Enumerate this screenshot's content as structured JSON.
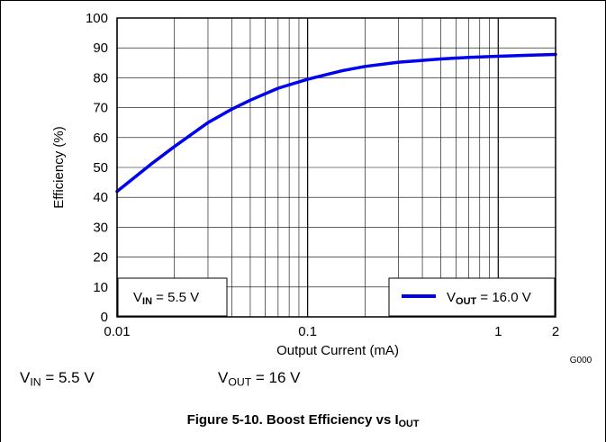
{
  "chart_data": {
    "type": "line",
    "xlabel": "Output Current (mA)",
    "ylabel": "Efficiency (%)",
    "xscale": "log",
    "xlim": [
      0.01,
      2
    ],
    "ylim": [
      0,
      100
    ],
    "x_tick_labels": [
      "0.01",
      "0.1",
      "1",
      "2"
    ],
    "x_tick_values": [
      0.01,
      0.1,
      1,
      2
    ],
    "y_tick_labels": [
      "0",
      "10",
      "20",
      "30",
      "40",
      "50",
      "60",
      "70",
      "80",
      "90",
      "100"
    ],
    "grid": true,
    "legend_position": "bottom-right",
    "series": [
      {
        "name_main": "V",
        "name_sub": "OUT",
        "name_rest": " = 16.0 V",
        "color": "#0000ee",
        "x": [
          0.01,
          0.015,
          0.02,
          0.03,
          0.04,
          0.05,
          0.07,
          0.1,
          0.15,
          0.2,
          0.3,
          0.5,
          0.7,
          1,
          1.5,
          2
        ],
        "y": [
          42,
          51,
          57,
          65,
          69.5,
          72.5,
          76.5,
          79.5,
          82.3,
          83.8,
          85.2,
          86.3,
          86.8,
          87.2,
          87.6,
          87.8
        ]
      }
    ],
    "inset_label": {
      "main": "V",
      "sub": "IN",
      "rest": " = 5.5 V"
    },
    "figure_code": "G000"
  },
  "conditions": {
    "vin": {
      "main": "V",
      "sub": "IN",
      "rest": " = 5.5 V"
    },
    "vout": {
      "main": "V",
      "sub": "OUT",
      "rest": " = 16 V"
    }
  },
  "caption": {
    "main": "Figure 5-10. Boost Efficiency vs I",
    "sub": "OUT"
  }
}
